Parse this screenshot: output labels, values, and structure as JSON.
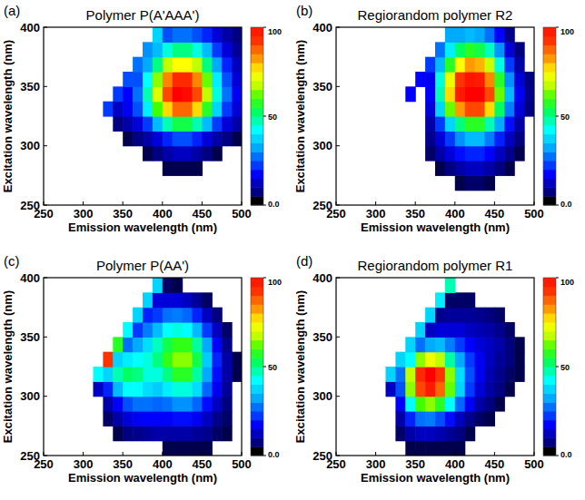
{
  "chart_data": [
    {
      "type": "heatmap",
      "panel_label": "(a)",
      "title": "Polymer P(A'AAA')",
      "x_label": "Emission wavelength (nm)",
      "y_label": "Excitation wavelength (nm)",
      "xlim": [
        250,
        500
      ],
      "ylim": [
        250,
        400
      ],
      "xticks": [
        250,
        300,
        350,
        400,
        450,
        500
      ],
      "yticks": [
        250,
        300,
        350,
        400
      ],
      "x_bins": [
        250,
        262.5,
        275,
        287.5,
        300,
        312.5,
        325,
        337.5,
        350,
        362.5,
        375,
        387.5,
        400,
        412.5,
        425,
        437.5,
        450,
        462.5,
        475,
        487.5,
        500
      ],
      "y_bins": [
        250,
        262.5,
        275,
        287.5,
        300,
        312.5,
        325,
        337.5,
        350,
        362.5,
        375,
        387.5,
        400
      ],
      "cells": [
        [
          0,
          0,
          0,
          0,
          0,
          0,
          0,
          0,
          0,
          0,
          0,
          0,
          0,
          0,
          0,
          0,
          0,
          0,
          0,
          0
        ],
        [
          0,
          0,
          0,
          0,
          0,
          0,
          0,
          0,
          0,
          0,
          0,
          0,
          0,
          0,
          0,
          0,
          0,
          0,
          0,
          0
        ],
        [
          0,
          0,
          0,
          0,
          0,
          0,
          0,
          0,
          0,
          0,
          0,
          0,
          3,
          3,
          3,
          3,
          0,
          0,
          0,
          0
        ],
        [
          0,
          0,
          0,
          0,
          0,
          0,
          0,
          0,
          0,
          0,
          3,
          5,
          8,
          10,
          10,
          8,
          5,
          3,
          0,
          0
        ],
        [
          0,
          0,
          0,
          0,
          0,
          0,
          0,
          0,
          3,
          5,
          8,
          12,
          18,
          22,
          22,
          18,
          12,
          8,
          5,
          3
        ],
        [
          0,
          0,
          0,
          0,
          0,
          0,
          0,
          5,
          8,
          12,
          20,
          32,
          45,
          52,
          52,
          45,
          32,
          20,
          12,
          8
        ],
        [
          0,
          0,
          0,
          0,
          0,
          0,
          20,
          10,
          14,
          22,
          38,
          58,
          75,
          85,
          85,
          75,
          55,
          35,
          20,
          12
        ],
        [
          0,
          0,
          0,
          0,
          0,
          0,
          0,
          20,
          15,
          25,
          45,
          68,
          88,
          100,
          98,
          88,
          65,
          42,
          25,
          14
        ],
        [
          0,
          0,
          0,
          0,
          0,
          0,
          0,
          0,
          22,
          22,
          40,
          62,
          82,
          92,
          92,
          82,
          60,
          38,
          22,
          12
        ],
        [
          0,
          0,
          0,
          0,
          0,
          0,
          0,
          0,
          0,
          25,
          30,
          48,
          65,
          72,
          72,
          65,
          48,
          30,
          18,
          10
        ],
        [
          0,
          0,
          0,
          0,
          0,
          0,
          0,
          0,
          0,
          0,
          28,
          32,
          42,
          48,
          48,
          42,
          32,
          20,
          12,
          7
        ],
        [
          0,
          0,
          0,
          0,
          0,
          0,
          0,
          0,
          0,
          0,
          0,
          35,
          22,
          25,
          25,
          22,
          18,
          12,
          8,
          5
        ]
      ],
      "colorbar": {
        "range": [
          0,
          100
        ],
        "ticks": [
          {
            "value": 0,
            "label": "0.0"
          },
          50,
          100
        ]
      }
    },
    {
      "type": "heatmap",
      "panel_label": "(b)",
      "title": "Regiorandom polymer R2",
      "x_label": "Emission wavelength (nm)",
      "y_label": "Excitation wavelength (nm)",
      "xlim": [
        250,
        500
      ],
      "ylim": [
        250,
        400
      ],
      "xticks": [
        250,
        300,
        350,
        400,
        450,
        500
      ],
      "yticks": [
        250,
        300,
        350,
        400
      ],
      "x_bins": [
        250,
        262.5,
        275,
        287.5,
        300,
        312.5,
        325,
        337.5,
        350,
        362.5,
        375,
        387.5,
        400,
        412.5,
        425,
        437.5,
        450,
        462.5,
        475,
        487.5,
        500
      ],
      "y_bins": [
        250,
        262.5,
        275,
        287.5,
        300,
        312.5,
        325,
        337.5,
        350,
        362.5,
        375,
        387.5,
        400
      ],
      "cells": [
        [
          0,
          0,
          0,
          0,
          0,
          0,
          0,
          0,
          0,
          0,
          0,
          0,
          0,
          0,
          0,
          0,
          0,
          0,
          0,
          0
        ],
        [
          0,
          0,
          0,
          0,
          0,
          0,
          0,
          0,
          0,
          0,
          0,
          0,
          3,
          4,
          4,
          3,
          0,
          0,
          0,
          0
        ],
        [
          0,
          0,
          0,
          0,
          0,
          0,
          0,
          0,
          0,
          0,
          3,
          5,
          8,
          10,
          10,
          8,
          5,
          3,
          0,
          0
        ],
        [
          0,
          0,
          0,
          0,
          0,
          0,
          0,
          0,
          0,
          4,
          8,
          12,
          16,
          18,
          18,
          15,
          10,
          6,
          3,
          0
        ],
        [
          0,
          0,
          0,
          0,
          0,
          0,
          0,
          0,
          0,
          6,
          12,
          20,
          28,
          32,
          32,
          26,
          18,
          10,
          5,
          0
        ],
        [
          0,
          0,
          0,
          0,
          0,
          0,
          0,
          0,
          0,
          8,
          20,
          35,
          48,
          55,
          55,
          45,
          30,
          16,
          8,
          0
        ],
        [
          0,
          0,
          0,
          0,
          0,
          0,
          0,
          0,
          0,
          12,
          35,
          60,
          80,
          88,
          88,
          75,
          50,
          26,
          12,
          5
        ],
        [
          0,
          0,
          0,
          0,
          0,
          0,
          0,
          15,
          0,
          15,
          45,
          75,
          95,
          100,
          100,
          88,
          60,
          32,
          14,
          6
        ],
        [
          0,
          0,
          0,
          0,
          0,
          0,
          0,
          0,
          15,
          14,
          42,
          70,
          90,
          96,
          95,
          82,
          55,
          28,
          12,
          5
        ],
        [
          0,
          0,
          0,
          0,
          0,
          0,
          0,
          0,
          0,
          20,
          32,
          55,
          72,
          80,
          78,
          66,
          42,
          20,
          8,
          0
        ],
        [
          0,
          0,
          0,
          0,
          0,
          0,
          0,
          0,
          0,
          0,
          25,
          38,
          50,
          55,
          52,
          44,
          28,
          12,
          5,
          0
        ],
        [
          0,
          0,
          0,
          0,
          0,
          0,
          0,
          0,
          0,
          0,
          0,
          30,
          30,
          32,
          30,
          25,
          15,
          6,
          0,
          0
        ]
      ],
      "colorbar": {
        "range": [
          0,
          100
        ],
        "ticks": [
          {
            "value": 0,
            "label": "0.0"
          },
          50,
          100
        ]
      }
    },
    {
      "type": "heatmap",
      "panel_label": "(c)",
      "title": "Polymer P(AA')",
      "x_label": "Emission wavelength (nm)",
      "y_label": "Excitation wavelength (nm)",
      "xlim": [
        250,
        500
      ],
      "ylim": [
        250,
        400
      ],
      "xticks": [
        250,
        300,
        350,
        400,
        450,
        500
      ],
      "yticks": [
        250,
        300,
        350,
        400
      ],
      "x_bins": [
        250,
        262.5,
        275,
        287.5,
        300,
        312.5,
        325,
        337.5,
        350,
        362.5,
        375,
        387.5,
        400,
        412.5,
        425,
        437.5,
        450,
        462.5,
        475,
        487.5,
        500
      ],
      "y_bins": [
        250,
        262.5,
        275,
        287.5,
        300,
        312.5,
        325,
        337.5,
        350,
        362.5,
        375,
        387.5,
        400
      ],
      "cells": [
        [
          0,
          0,
          0,
          0,
          0,
          0,
          0,
          0,
          0,
          0,
          0,
          0,
          3,
          3,
          3,
          3,
          3,
          0,
          0,
          0
        ],
        [
          0,
          0,
          0,
          0,
          0,
          0,
          0,
          3,
          5,
          6,
          7,
          8,
          8,
          8,
          8,
          7,
          6,
          4,
          3,
          0
        ],
        [
          0,
          0,
          0,
          0,
          0,
          0,
          4,
          8,
          12,
          14,
          15,
          15,
          15,
          16,
          16,
          14,
          10,
          6,
          4,
          0
        ],
        [
          0,
          0,
          0,
          0,
          0,
          0,
          8,
          15,
          22,
          25,
          25,
          24,
          25,
          28,
          28,
          24,
          16,
          10,
          5,
          0
        ],
        [
          0,
          0,
          0,
          0,
          0,
          10,
          18,
          32,
          40,
          40,
          36,
          34,
          38,
          42,
          42,
          36,
          24,
          14,
          7,
          0
        ],
        [
          0,
          0,
          0,
          0,
          0,
          40,
          35,
          45,
          50,
          48,
          42,
          42,
          48,
          55,
          55,
          46,
          30,
          16,
          8,
          3
        ],
        [
          0,
          0,
          0,
          0,
          0,
          0,
          90,
          35,
          38,
          40,
          42,
          48,
          56,
          62,
          62,
          52,
          34,
          18,
          8,
          3
        ],
        [
          0,
          0,
          0,
          0,
          0,
          0,
          0,
          55,
          25,
          30,
          36,
          44,
          52,
          56,
          56,
          46,
          30,
          15,
          6,
          0
        ],
        [
          0,
          0,
          0,
          0,
          0,
          0,
          0,
          0,
          40,
          20,
          26,
          32,
          40,
          42,
          40,
          32,
          20,
          10,
          4,
          0
        ],
        [
          0,
          0,
          0,
          0,
          0,
          0,
          0,
          0,
          0,
          35,
          18,
          20,
          25,
          26,
          24,
          18,
          10,
          5,
          0,
          0
        ],
        [
          0,
          0,
          0,
          0,
          0,
          0,
          0,
          0,
          0,
          0,
          35,
          12,
          12,
          12,
          10,
          7,
          4,
          0,
          0,
          0
        ],
        [
          0,
          0,
          0,
          0,
          0,
          0,
          0,
          0,
          0,
          0,
          0,
          35,
          4,
          3,
          0,
          0,
          0,
          0,
          0,
          0
        ]
      ],
      "colorbar": {
        "range": [
          0,
          100
        ],
        "ticks": [
          {
            "value": 0,
            "label": "0.0"
          },
          50,
          100
        ]
      }
    },
    {
      "type": "heatmap",
      "panel_label": "(d)",
      "title": "Regiorandom polymer R1",
      "x_label": "Emission wavelength (nm)",
      "y_label": "Excitation wavelength (nm)",
      "xlim": [
        250,
        500
      ],
      "ylim": [
        250,
        400
      ],
      "xticks": [
        250,
        300,
        350,
        400,
        450,
        500
      ],
      "yticks": [
        250,
        300,
        350,
        400
      ],
      "x_bins": [
        250,
        262.5,
        275,
        287.5,
        300,
        312.5,
        325,
        337.5,
        350,
        362.5,
        375,
        387.5,
        400,
        412.5,
        425,
        437.5,
        450,
        462.5,
        475,
        487.5,
        500
      ],
      "y_bins": [
        250,
        262.5,
        275,
        287.5,
        300,
        312.5,
        325,
        337.5,
        350,
        362.5,
        375,
        387.5,
        400
      ],
      "cells": [
        [
          0,
          0,
          0,
          0,
          0,
          0,
          0,
          3,
          3,
          3,
          3,
          3,
          3,
          0,
          0,
          0,
          0,
          0,
          0,
          0
        ],
        [
          0,
          0,
          0,
          0,
          0,
          0,
          4,
          8,
          10,
          10,
          9,
          7,
          5,
          3,
          0,
          0,
          0,
          0,
          0,
          0
        ],
        [
          0,
          0,
          0,
          0,
          0,
          0,
          8,
          18,
          25,
          26,
          22,
          16,
          10,
          6,
          4,
          3,
          0,
          0,
          0,
          0
        ],
        [
          0,
          0,
          0,
          0,
          0,
          0,
          15,
          40,
          58,
          62,
          55,
          40,
          24,
          14,
          8,
          5,
          3,
          0,
          0,
          0
        ],
        [
          0,
          0,
          0,
          0,
          0,
          10,
          22,
          62,
          88,
          95,
          85,
          60,
          35,
          20,
          12,
          8,
          5,
          3,
          0,
          0
        ],
        [
          0,
          0,
          0,
          0,
          0,
          35,
          25,
          65,
          92,
          100,
          90,
          62,
          36,
          22,
          14,
          9,
          6,
          4,
          3,
          0
        ],
        [
          0,
          0,
          0,
          0,
          0,
          0,
          35,
          40,
          62,
          70,
          65,
          46,
          30,
          20,
          14,
          10,
          7,
          5,
          3,
          0
        ],
        [
          0,
          0,
          0,
          0,
          0,
          0,
          0,
          35,
          25,
          30,
          32,
          26,
          20,
          15,
          12,
          10,
          8,
          5,
          3,
          0
        ],
        [
          0,
          0,
          0,
          0,
          0,
          0,
          0,
          0,
          35,
          10,
          12,
          12,
          12,
          10,
          9,
          8,
          6,
          4,
          0,
          0
        ],
        [
          0,
          0,
          0,
          0,
          0,
          0,
          0,
          0,
          0,
          35,
          6,
          7,
          7,
          7,
          6,
          5,
          4,
          0,
          0,
          0
        ],
        [
          0,
          0,
          0,
          0,
          0,
          0,
          0,
          0,
          0,
          0,
          38,
          4,
          4,
          4,
          0,
          0,
          0,
          0,
          0,
          0
        ],
        [
          0,
          0,
          0,
          0,
          0,
          0,
          0,
          0,
          0,
          0,
          0,
          45,
          0,
          0,
          0,
          0,
          0,
          0,
          0,
          0
        ]
      ],
      "colorbar": {
        "range": [
          0,
          100
        ],
        "ticks": [
          {
            "value": 0,
            "label": "0.0"
          },
          50,
          100
        ]
      }
    }
  ]
}
